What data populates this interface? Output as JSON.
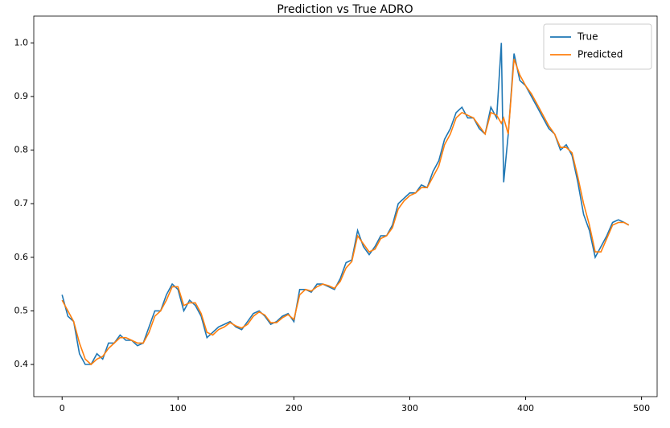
{
  "chart_data": {
    "type": "line",
    "title": "Prediction vs True ADRO",
    "x": [
      0,
      5,
      10,
      15,
      20,
      25,
      30,
      35,
      40,
      45,
      50,
      55,
      60,
      65,
      70,
      75,
      80,
      85,
      90,
      95,
      100,
      105,
      110,
      115,
      120,
      125,
      130,
      135,
      140,
      145,
      150,
      155,
      160,
      165,
      170,
      175,
      180,
      185,
      190,
      195,
      200,
      205,
      210,
      215,
      220,
      225,
      230,
      235,
      240,
      245,
      250,
      255,
      260,
      265,
      270,
      275,
      280,
      285,
      290,
      295,
      300,
      305,
      310,
      315,
      320,
      325,
      330,
      335,
      340,
      345,
      350,
      355,
      360,
      365,
      370,
      375,
      379,
      381,
      385,
      390,
      395,
      400,
      405,
      410,
      415,
      420,
      425,
      430,
      435,
      440,
      445,
      450,
      455,
      460,
      465,
      470,
      475,
      480,
      485,
      489
    ],
    "series": [
      {
        "name": "True",
        "color": "#1f77b4",
        "values": [
          0.53,
          0.49,
          0.48,
          0.42,
          0.4,
          0.4,
          0.42,
          0.41,
          0.44,
          0.44,
          0.455,
          0.445,
          0.445,
          0.435,
          0.44,
          0.47,
          0.5,
          0.5,
          0.53,
          0.55,
          0.54,
          0.5,
          0.52,
          0.51,
          0.49,
          0.45,
          0.46,
          0.47,
          0.475,
          0.48,
          0.47,
          0.465,
          0.48,
          0.495,
          0.5,
          0.49,
          0.475,
          0.48,
          0.49,
          0.495,
          0.48,
          0.54,
          0.54,
          0.535,
          0.55,
          0.55,
          0.545,
          0.54,
          0.56,
          0.59,
          0.595,
          0.65,
          0.62,
          0.605,
          0.62,
          0.64,
          0.64,
          0.66,
          0.7,
          0.71,
          0.72,
          0.72,
          0.735,
          0.73,
          0.76,
          0.78,
          0.82,
          0.84,
          0.87,
          0.88,
          0.86,
          0.86,
          0.84,
          0.83,
          0.88,
          0.86,
          1.0,
          0.74,
          0.83,
          0.98,
          0.93,
          0.92,
          0.9,
          0.88,
          0.86,
          0.84,
          0.83,
          0.8,
          0.81,
          0.79,
          0.74,
          0.68,
          0.65,
          0.6,
          0.62,
          0.64,
          0.665,
          0.67,
          0.665,
          0.66
        ]
      },
      {
        "name": "Predicted",
        "color": "#ff7f0e",
        "values": [
          0.52,
          0.5,
          0.48,
          0.44,
          0.41,
          0.4,
          0.41,
          0.415,
          0.43,
          0.44,
          0.45,
          0.45,
          0.445,
          0.44,
          0.44,
          0.46,
          0.49,
          0.5,
          0.52,
          0.545,
          0.545,
          0.51,
          0.515,
          0.515,
          0.495,
          0.46,
          0.455,
          0.465,
          0.47,
          0.478,
          0.472,
          0.468,
          0.475,
          0.49,
          0.498,
          0.492,
          0.478,
          0.478,
          0.487,
          0.493,
          0.484,
          0.53,
          0.54,
          0.537,
          0.545,
          0.55,
          0.547,
          0.542,
          0.555,
          0.58,
          0.592,
          0.64,
          0.625,
          0.61,
          0.615,
          0.635,
          0.64,
          0.655,
          0.69,
          0.705,
          0.715,
          0.72,
          0.73,
          0.73,
          0.75,
          0.77,
          0.81,
          0.83,
          0.86,
          0.87,
          0.865,
          0.86,
          0.845,
          0.83,
          0.87,
          0.865,
          0.85,
          0.86,
          0.83,
          0.97,
          0.94,
          0.92,
          0.905,
          0.885,
          0.865,
          0.845,
          0.83,
          0.805,
          0.805,
          0.795,
          0.75,
          0.7,
          0.66,
          0.61,
          0.61,
          0.635,
          0.66,
          0.665,
          0.665,
          0.66
        ]
      }
    ],
    "xlim": [
      -24.45,
      513.45
    ],
    "ylim": [
      0.34,
      1.05
    ],
    "xticks": [
      0,
      100,
      200,
      300,
      400,
      500
    ],
    "yticks": [
      0.4,
      0.5,
      0.6,
      0.7,
      0.8,
      0.9,
      {
        "value": 1,
        "label": "1.0"
      }
    ],
    "legend": "upper right"
  }
}
